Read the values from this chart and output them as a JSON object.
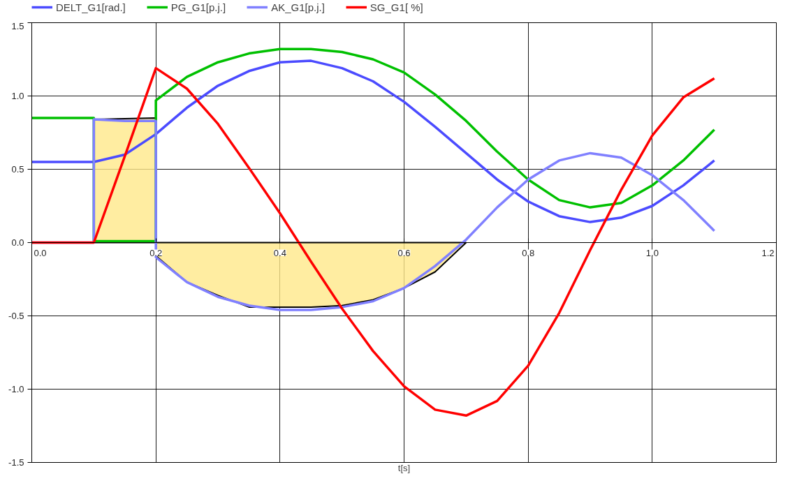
{
  "chart_data": {
    "type": "line",
    "xlabel": "t[s]",
    "xlim": [
      0,
      1.2
    ],
    "ylim": [
      -1.5,
      1.5
    ],
    "xticks": [
      {
        "value": 0,
        "label": "0.0"
      },
      {
        "value": 0.2,
        "label": "0.2"
      },
      {
        "value": 0.4,
        "label": "0.4"
      },
      {
        "value": 0.6,
        "label": "0.6"
      },
      {
        "value": 0.8,
        "label": "0.8"
      },
      {
        "value": 1.0,
        "label": "1.0"
      },
      {
        "value": 1.2,
        "label": "1.2"
      }
    ],
    "yticks": [
      {
        "value": -1.5,
        "label": "-1.5"
      },
      {
        "value": -1.0,
        "label": "-1.0"
      },
      {
        "value": -0.5,
        "label": "-0.5"
      },
      {
        "value": 0,
        "label": "0.0"
      },
      {
        "value": 0.5,
        "label": "0.5"
      },
      {
        "value": 1.0,
        "label": "1.0"
      },
      {
        "value": 1.5,
        "label": "1.5"
      }
    ],
    "grid": true,
    "legend": "top",
    "marker": "none",
    "line_style": "solid",
    "series": [
      {
        "type": "area",
        "color": "#ffe88a",
        "x": [
          0.1,
          0.2
        ],
        "values": [
          0.84,
          0.85
        ]
      },
      {
        "type": "area",
        "color": "#ffe88a",
        "x": [
          0.2,
          0.2,
          0.25,
          0.3,
          0.35,
          0.4,
          0.45,
          0.5,
          0.55,
          0.6,
          0.65,
          0.7
        ],
        "values": [
          0,
          -0.09,
          -0.27,
          -0.36,
          -0.44,
          -0.44,
          -0.44,
          -0.43,
          -0.39,
          -0.31,
          -0.2,
          0
        ]
      },
      {
        "name": "DELT_G1[rad.]",
        "color": "#4b4bff",
        "x": [
          0,
          0.05,
          0.1,
          0.15,
          0.2,
          0.25,
          0.3,
          0.35,
          0.4,
          0.45,
          0.5,
          0.55,
          0.6,
          0.65,
          0.7,
          0.75,
          0.8,
          0.85,
          0.9,
          0.95,
          1.0,
          1.05,
          1.1
        ],
        "values": [
          0.55,
          0.55,
          0.55,
          0.6,
          0.74,
          0.92,
          1.07,
          1.17,
          1.23,
          1.24,
          1.19,
          1.1,
          0.96,
          0.79,
          0.61,
          0.43,
          0.28,
          0.18,
          0.14,
          0.17,
          0.25,
          0.39,
          0.56
        ]
      },
      {
        "name": "PG_G1[p.j.]",
        "color": "#00c000",
        "x": [
          0,
          0.05,
          0.1,
          0.1,
          0.15,
          0.2,
          0.2,
          0.25,
          0.3,
          0.35,
          0.4,
          0.45,
          0.5,
          0.55,
          0.6,
          0.65,
          0.7,
          0.75,
          0.8,
          0.85,
          0.9,
          0.95,
          1.0,
          1.05,
          1.1
        ],
        "values": [
          0.85,
          0.85,
          0.85,
          0.01,
          0.01,
          0.01,
          0.97,
          1.13,
          1.23,
          1.29,
          1.32,
          1.32,
          1.3,
          1.25,
          1.16,
          1.01,
          0.83,
          0.62,
          0.43,
          0.29,
          0.24,
          0.27,
          0.39,
          0.56,
          0.77
        ]
      },
      {
        "name": "AK_G1[p.j.]",
        "color": "#8080ff",
        "x": [
          0,
          0.05,
          0.1,
          0.1,
          0.15,
          0.2,
          0.2,
          0.25,
          0.3,
          0.35,
          0.4,
          0.45,
          0.5,
          0.55,
          0.6,
          0.65,
          0.7,
          0.75,
          0.8,
          0.85,
          0.9,
          0.95,
          1.0,
          1.05,
          1.1
        ],
        "values": [
          0,
          0,
          0,
          0.84,
          0.83,
          0.83,
          -0.1,
          -0.27,
          -0.37,
          -0.43,
          -0.46,
          -0.46,
          -0.44,
          -0.4,
          -0.31,
          -0.16,
          0.02,
          0.24,
          0.43,
          0.56,
          0.61,
          0.58,
          0.46,
          0.29,
          0.08
        ]
      },
      {
        "name": "SG_G1[ %]",
        "color": "#ff0000",
        "x": [
          0,
          0.05,
          0.1,
          0.15,
          0.2,
          0.25,
          0.3,
          0.35,
          0.4,
          0.45,
          0.5,
          0.55,
          0.6,
          0.65,
          0.7,
          0.75,
          0.8,
          0.85,
          0.9,
          0.95,
          1.0,
          1.05,
          1.1
        ],
        "values": [
          0,
          0,
          0,
          0.59,
          1.19,
          1.05,
          0.81,
          0.51,
          0.2,
          -0.13,
          -0.45,
          -0.74,
          -0.98,
          -1.14,
          -1.18,
          -1.08,
          -0.84,
          -0.48,
          -0.05,
          0.36,
          0.73,
          0.99,
          1.12
        ]
      }
    ]
  }
}
